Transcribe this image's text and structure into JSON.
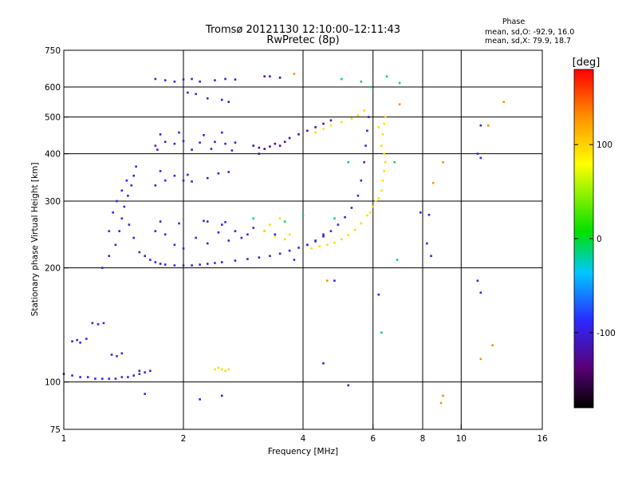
{
  "chart_data": {
    "type": "scatter",
    "title": "Tromsø 20121130 12:10:00–12:11:43",
    "subtitle": "RwPretec (8p)",
    "xlabel": "Frequency [MHz]",
    "ylabel": "Stationary phase Virtual Height [km]",
    "x_scale": "log",
    "y_scale": "log",
    "xlim": [
      1,
      16
    ],
    "ylim": [
      75,
      750
    ],
    "x_ticks": [
      1,
      2,
      4,
      6,
      8,
      10,
      16
    ],
    "y_ticks": [
      75,
      100,
      200,
      300,
      400,
      500,
      600,
      750
    ],
    "x_tick_labels": [
      "1",
      "2",
      "4",
      "6",
      "8",
      "10",
      "16"
    ],
    "y_tick_labels": [
      "75",
      "100",
      "200",
      "300",
      "400",
      "500",
      "600",
      "750"
    ],
    "x_grid": [
      2,
      4,
      6,
      8,
      10
    ],
    "y_grid": [
      100,
      200,
      300,
      400,
      500,
      600
    ],
    "grid": true,
    "stats": {
      "heading": "Phase",
      "line_o": "mean, sd,O: -92.9, 16.0",
      "line_x": "mean, sd,X:  79.9, 18.7"
    },
    "colorbar": {
      "label": "[deg]",
      "range": [
        -180,
        180
      ],
      "ticks": [
        -100,
        0,
        100
      ],
      "tick_labels": [
        "-100",
        "0",
        "100"
      ]
    },
    "series": [
      {
        "phase_deg": -95,
        "points": [
          [
            1.0,
            105
          ],
          [
            1.05,
            104
          ],
          [
            1.1,
            103
          ],
          [
            1.15,
            103
          ],
          [
            1.2,
            102
          ],
          [
            1.25,
            102
          ],
          [
            1.3,
            102
          ],
          [
            1.35,
            102
          ],
          [
            1.4,
            103
          ],
          [
            1.45,
            103
          ],
          [
            1.5,
            104
          ],
          [
            1.55,
            105
          ],
          [
            1.6,
            106
          ],
          [
            1.55,
            107
          ],
          [
            1.65,
            107
          ],
          [
            1.05,
            128
          ],
          [
            1.08,
            129
          ],
          [
            1.1,
            127
          ],
          [
            1.14,
            130
          ],
          [
            1.18,
            143
          ],
          [
            1.22,
            142
          ],
          [
            1.26,
            143
          ],
          [
            1.32,
            118
          ],
          [
            1.36,
            117
          ],
          [
            1.4,
            119
          ],
          [
            1.25,
            200
          ],
          [
            1.3,
            215
          ],
          [
            1.35,
            230
          ],
          [
            1.38,
            250
          ],
          [
            1.4,
            270
          ],
          [
            1.42,
            290
          ],
          [
            1.45,
            310
          ],
          [
            1.48,
            330
          ],
          [
            1.5,
            350
          ],
          [
            1.52,
            370
          ],
          [
            1.3,
            250
          ],
          [
            1.33,
            280
          ],
          [
            1.36,
            300
          ],
          [
            1.4,
            320
          ],
          [
            1.44,
            340
          ],
          [
            1.46,
            260
          ],
          [
            1.5,
            240
          ],
          [
            1.55,
            220
          ],
          [
            1.6,
            215
          ],
          [
            1.65,
            210
          ],
          [
            1.7,
            207
          ],
          [
            1.75,
            205
          ],
          [
            1.8,
            204
          ],
          [
            1.9,
            203
          ],
          [
            2.0,
            203
          ],
          [
            2.1,
            203
          ],
          [
            2.2,
            204
          ],
          [
            2.3,
            205
          ],
          [
            2.4,
            206
          ],
          [
            2.5,
            207
          ],
          [
            2.7,
            209
          ],
          [
            2.9,
            211
          ],
          [
            3.1,
            213
          ],
          [
            3.3,
            215
          ],
          [
            3.5,
            218
          ],
          [
            3.7,
            222
          ],
          [
            3.9,
            226
          ],
          [
            4.1,
            230
          ],
          [
            4.3,
            235
          ],
          [
            4.5,
            242
          ],
          [
            4.7,
            250
          ],
          [
            4.9,
            260
          ],
          [
            5.1,
            272
          ],
          [
            5.3,
            288
          ],
          [
            5.5,
            310
          ],
          [
            5.6,
            340
          ],
          [
            5.7,
            380
          ],
          [
            5.75,
            420
          ],
          [
            5.8,
            460
          ],
          [
            5.85,
            500
          ],
          [
            1.7,
            250
          ],
          [
            1.8,
            245
          ],
          [
            1.9,
            230
          ],
          [
            2.0,
            225
          ],
          [
            2.15,
            240
          ],
          [
            2.3,
            232
          ],
          [
            2.45,
            248
          ],
          [
            2.6,
            236
          ],
          [
            2.8,
            240
          ],
          [
            1.75,
            265
          ],
          [
            1.95,
            262
          ],
          [
            2.25,
            266
          ],
          [
            2.55,
            264
          ],
          [
            1.7,
            330
          ],
          [
            1.8,
            340
          ],
          [
            1.9,
            350
          ],
          [
            2.0,
            340
          ],
          [
            2.1,
            338
          ],
          [
            2.3,
            345
          ],
          [
            2.45,
            355
          ],
          [
            2.6,
            358
          ],
          [
            1.75,
            360
          ],
          [
            2.05,
            352
          ],
          [
            1.7,
            420
          ],
          [
            1.8,
            430
          ],
          [
            1.9,
            425
          ],
          [
            2.0,
            432
          ],
          [
            2.2,
            428
          ],
          [
            2.4,
            430
          ],
          [
            2.55,
            425
          ],
          [
            2.7,
            428
          ],
          [
            1.75,
            450
          ],
          [
            1.95,
            455
          ],
          [
            2.25,
            448
          ],
          [
            2.5,
            455
          ],
          [
            1.72,
            410
          ],
          [
            2.1,
            410
          ],
          [
            2.35,
            412
          ],
          [
            2.65,
            408
          ],
          [
            1.7,
            630
          ],
          [
            1.8,
            625
          ],
          [
            1.9,
            620
          ],
          [
            2.0,
            628
          ],
          [
            2.1,
            630
          ],
          [
            2.2,
            620
          ],
          [
            2.4,
            625
          ],
          [
            2.55,
            630
          ],
          [
            2.7,
            628
          ],
          [
            2.05,
            580
          ],
          [
            2.15,
            575
          ],
          [
            2.3,
            560
          ],
          [
            2.5,
            555
          ],
          [
            2.6,
            548
          ],
          [
            2.3,
            265
          ],
          [
            2.5,
            260
          ],
          [
            2.7,
            250
          ],
          [
            2.9,
            245
          ],
          [
            3.0,
            255
          ],
          [
            3.2,
            250
          ],
          [
            3.4,
            245
          ],
          [
            4.1,
            230
          ],
          [
            4.3,
            236
          ],
          [
            4.5,
            245
          ],
          [
            1.6,
            93
          ],
          [
            2.2,
            90
          ],
          [
            2.5,
            92
          ],
          [
            3.8,
            210
          ],
          [
            4.8,
            185
          ],
          [
            4.5,
            112
          ],
          [
            5.2,
            98
          ],
          [
            6.2,
            170
          ],
          [
            8.2,
            232
          ],
          [
            8.4,
            215
          ],
          [
            8.3,
            276
          ],
          [
            11.0,
            185
          ],
          [
            11.2,
            172
          ],
          [
            11.0,
            400
          ],
          [
            11.2,
            390
          ],
          [
            11.2,
            475
          ],
          [
            7.9,
            280
          ]
        ]
      },
      {
        "phase_deg": -120,
        "points": [
          [
            3.0,
            420
          ],
          [
            3.1,
            415
          ],
          [
            3.2,
            412
          ],
          [
            3.3,
            418
          ],
          [
            3.4,
            425
          ],
          [
            3.5,
            420
          ],
          [
            3.6,
            430
          ],
          [
            3.7,
            440
          ],
          [
            3.9,
            450
          ],
          [
            4.1,
            460
          ],
          [
            4.3,
            470
          ],
          [
            4.5,
            480
          ],
          [
            4.7,
            490
          ],
          [
            3.2,
            640
          ],
          [
            3.3,
            640
          ],
          [
            3.5,
            635
          ],
          [
            3.1,
            400
          ]
        ]
      },
      {
        "phase_deg": 95,
        "points": [
          [
            2.4,
            108
          ],
          [
            2.45,
            109
          ],
          [
            2.5,
            108
          ],
          [
            2.55,
            107
          ],
          [
            2.6,
            108
          ],
          [
            4.2,
            225
          ],
          [
            4.4,
            228
          ],
          [
            4.6,
            230
          ],
          [
            4.8,
            233
          ],
          [
            5.0,
            238
          ],
          [
            5.2,
            244
          ],
          [
            5.4,
            252
          ],
          [
            5.6,
            262
          ],
          [
            5.8,
            275
          ],
          [
            6.0,
            290
          ],
          [
            6.2,
            305
          ],
          [
            6.3,
            320
          ],
          [
            6.35,
            340
          ],
          [
            6.4,
            360
          ],
          [
            6.45,
            380
          ],
          [
            6.4,
            400
          ],
          [
            6.3,
            420
          ],
          [
            6.35,
            450
          ],
          [
            6.4,
            480
          ],
          [
            6.45,
            500
          ],
          [
            3.2,
            250
          ],
          [
            3.4,
            242
          ],
          [
            3.6,
            238
          ],
          [
            3.3,
            260
          ],
          [
            3.5,
            270
          ],
          [
            3.7,
            245
          ],
          [
            4.3,
            455
          ],
          [
            4.5,
            465
          ],
          [
            4.7,
            475
          ],
          [
            5.0,
            485
          ],
          [
            5.3,
            495
          ],
          [
            5.5,
            505
          ],
          [
            5.7,
            520
          ],
          [
            6.2,
            470
          ],
          [
            5.9,
            280
          ],
          [
            6.1,
            300
          ]
        ]
      },
      {
        "phase_deg": -10,
        "points": [
          [
            3.0,
            270
          ],
          [
            3.6,
            265
          ],
          [
            4.0,
            275
          ],
          [
            4.8,
            270
          ],
          [
            5.2,
            380
          ],
          [
            5.6,
            620
          ],
          [
            6.5,
            640
          ],
          [
            7.0,
            615
          ],
          [
            6.9,
            210
          ],
          [
            6.8,
            380
          ],
          [
            5.9,
            600
          ],
          [
            6.3,
            135
          ],
          [
            5.0,
            630
          ]
        ]
      },
      {
        "phase_deg": 130,
        "points": [
          [
            9.0,
            92
          ],
          [
            8.9,
            88
          ],
          [
            11.7,
            475
          ],
          [
            12.8,
            548
          ],
          [
            8.5,
            335
          ],
          [
            9.0,
            380
          ],
          [
            11.2,
            115
          ],
          [
            12.0,
            125
          ],
          [
            3.8,
            650
          ],
          [
            7.0,
            540
          ],
          [
            4.6,
            185
          ]
        ]
      }
    ]
  }
}
